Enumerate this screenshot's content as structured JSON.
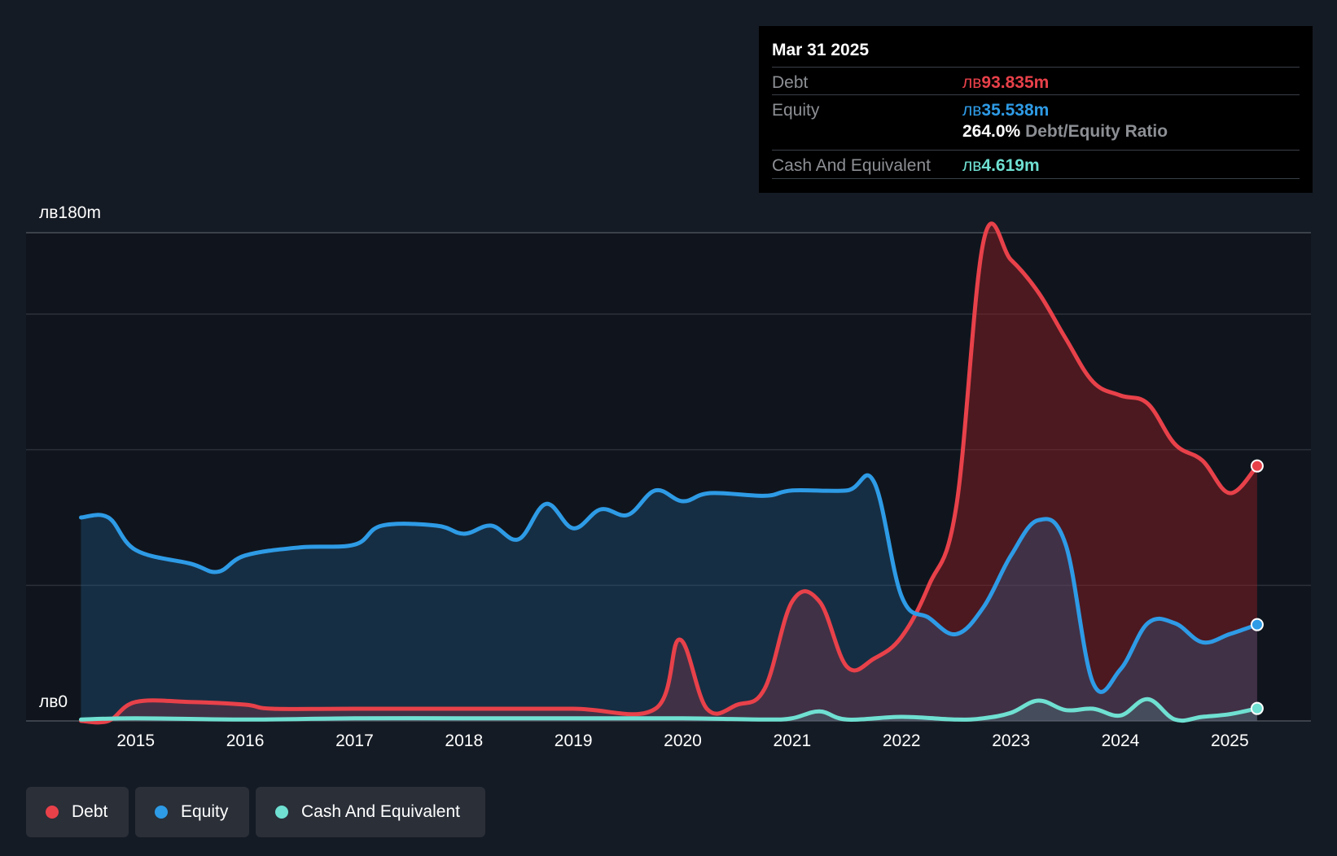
{
  "tooltip": {
    "date": "Mar 31 2025",
    "debt_label": "Debt",
    "debt_currency": "лв",
    "debt_value": "93.835m",
    "equity_label": "Equity",
    "equity_currency": "лв",
    "equity_value": "35.538m",
    "ratio_value": "264.0%",
    "ratio_label": "Debt/Equity Ratio",
    "cash_label": "Cash And Equivalent",
    "cash_currency": "лв",
    "cash_value": "4.619m"
  },
  "legend": [
    {
      "label": "Debt",
      "color": "#e8414a"
    },
    {
      "label": "Equity",
      "color": "#2e9be6"
    },
    {
      "label": "Cash And Equivalent",
      "color": "#6fe0d2"
    }
  ],
  "chart_data": {
    "type": "area",
    "y_top_label": "лв180m",
    "y_bottom_label": "лв0",
    "ylim": [
      0,
      180
    ],
    "xlim": [
      2014.0,
      2025.25
    ],
    "x_ticks": [
      2015,
      2016,
      2017,
      2018,
      2019,
      2020,
      2021,
      2022,
      2023,
      2024,
      2025
    ],
    "x_tick_labels": [
      "2015",
      "2016",
      "2017",
      "2018",
      "2019",
      "2020",
      "2021",
      "2022",
      "2023",
      "2024",
      "2025"
    ],
    "grid": true,
    "legend_position": "bottom-left",
    "series": [
      {
        "name": "Debt",
        "color": "#e8414a",
        "x": [
          2014.5,
          2014.75,
          2015.0,
          2015.5,
          2016.0,
          2016.25,
          2017.0,
          2018.0,
          2019.0,
          2019.75,
          2019.97,
          2020.22,
          2020.5,
          2020.75,
          2021.0,
          2021.25,
          2021.5,
          2021.75,
          2022.0,
          2022.25,
          2022.5,
          2022.75,
          2023.0,
          2023.25,
          2023.5,
          2023.75,
          2024.0,
          2024.25,
          2024.5,
          2024.75,
          2025.0,
          2025.25
        ],
        "y": [
          0,
          0,
          7,
          7,
          6,
          4.5,
          4.5,
          4.5,
          4.5,
          4.5,
          30,
          4.5,
          6,
          12,
          44,
          44,
          20,
          23,
          31,
          50,
          79,
          177,
          170,
          158,
          141,
          125,
          120,
          117,
          102,
          96,
          84,
          94
        ]
      },
      {
        "name": "Equity",
        "color": "#2e9be6",
        "x": [
          2014.5,
          2014.75,
          2015.0,
          2015.5,
          2015.75,
          2016.0,
          2016.5,
          2017.0,
          2017.25,
          2017.75,
          2018.0,
          2018.25,
          2018.5,
          2018.75,
          2019.0,
          2019.25,
          2019.5,
          2019.75,
          2020.0,
          2020.25,
          2020.75,
          2021.0,
          2021.5,
          2021.75,
          2022.0,
          2022.25,
          2022.5,
          2022.75,
          2023.0,
          2023.25,
          2023.5,
          2023.75,
          2024.0,
          2024.25,
          2024.5,
          2024.75,
          2025.0,
          2025.25
        ],
        "y": [
          75,
          75,
          63,
          58,
          55,
          61,
          64,
          65,
          72,
          72,
          69,
          72,
          67,
          80,
          71,
          78,
          76,
          85,
          81,
          84,
          83,
          85,
          85,
          88,
          46,
          38,
          32,
          42,
          61,
          74,
          65,
          14,
          19,
          36,
          36,
          29,
          32,
          35.5
        ]
      },
      {
        "name": "Cash And Equivalent",
        "color": "#6fe0d2",
        "x": [
          2014.5,
          2015.0,
          2016.0,
          2017.0,
          2018.0,
          2019.0,
          2020.0,
          2020.75,
          2021.0,
          2021.25,
          2021.5,
          2022.0,
          2022.5,
          2022.75,
          2023.0,
          2023.25,
          2023.5,
          2023.75,
          2024.0,
          2024.25,
          2024.5,
          2024.75,
          2025.0,
          2025.25
        ],
        "y": [
          0.5,
          1,
          0.5,
          1,
          1,
          1,
          1,
          0.5,
          1,
          3.5,
          0.5,
          1.5,
          0.5,
          1,
          3,
          7.5,
          4,
          4.5,
          2,
          8,
          0.5,
          1.5,
          2.5,
          4.6
        ]
      }
    ]
  }
}
